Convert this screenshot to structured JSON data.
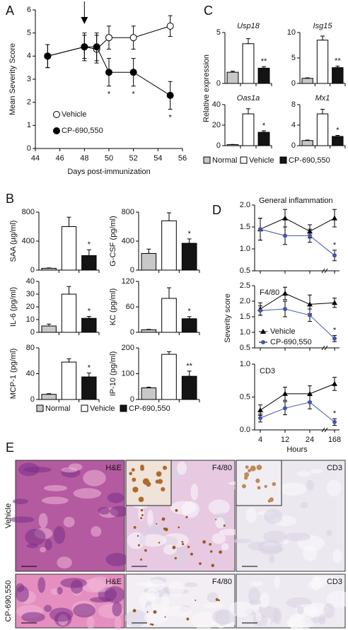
{
  "chart_data": [
    {
      "panel": "A",
      "type": "line",
      "xlabel": "Days post-immunization",
      "ylabel": "Mean Severity Score",
      "xlim": [
        44,
        56
      ],
      "xticks": [
        44,
        46,
        48,
        50,
        52,
        54,
        56
      ],
      "ylim": [
        0,
        6
      ],
      "yticks": [
        0,
        1,
        2,
        3,
        4,
        5,
        6
      ],
      "arrow_x": 48,
      "series": [
        {
          "name": "Vehicle",
          "color": "#000000",
          "fill": "#ffffff",
          "x": [
            45,
            48,
            49,
            50,
            52,
            55
          ],
          "values": [
            4,
            4.4,
            4.3,
            4.8,
            4.8,
            5.3
          ],
          "errors": [
            0.5,
            0.5,
            0.6,
            0.5,
            0.5,
            0.45
          ]
        },
        {
          "name": "CP-690,550",
          "color": "#000000",
          "fill": "#000000",
          "x": [
            45,
            48,
            49,
            50,
            52,
            55
          ],
          "values": [
            4,
            4.4,
            4.4,
            3.3,
            3.3,
            2.3
          ],
          "errors": [
            0.5,
            0.6,
            0.6,
            0.6,
            0.6,
            0.6
          ],
          "significance": [
            null,
            null,
            null,
            "*",
            "*",
            "*"
          ]
        }
      ]
    },
    {
      "panel": "B",
      "type": "bar",
      "categories": [
        "Normal",
        "Vehicle",
        "CP-690,550"
      ],
      "colors": [
        "#c8c8c8",
        "#ffffff",
        "#141414"
      ],
      "panels": [
        {
          "ylabel": "SAA (µg/ml)",
          "values": [
            25,
            600,
            200
          ],
          "errors": [
            5,
            130,
            80
          ],
          "ylim": [
            0,
            800
          ],
          "yticks": [
            0,
            400,
            800
          ],
          "significance": [
            null,
            null,
            "*"
          ]
        },
        {
          "ylabel": "G-CSF (pg/ml)",
          "values": [
            230,
            680,
            370
          ],
          "errors": [
            60,
            110,
            60
          ],
          "ylim": [
            0,
            800
          ],
          "yticks": [
            0,
            400,
            800
          ],
          "significance": [
            null,
            null,
            "*"
          ]
        },
        {
          "ylabel": "IL-6 (pg/ml)",
          "values": [
            5,
            30,
            11
          ],
          "errors": [
            1.5,
            6,
            1.5
          ],
          "ylim": [
            0,
            40
          ],
          "yticks": [
            0,
            10,
            20,
            30,
            40
          ],
          "significance": [
            null,
            null,
            "*"
          ]
        },
        {
          "ylabel": "KC (pg/ml)",
          "values": [
            6,
            80,
            32
          ],
          "errors": [
            1,
            25,
            5
          ],
          "ylim": [
            0,
            120
          ],
          "yticks": [
            0,
            60,
            120
          ],
          "significance": [
            null,
            null,
            "*"
          ]
        },
        {
          "ylabel": "MCP-1 (pg/ml)",
          "values": [
            8,
            58,
            35
          ],
          "errors": [
            1,
            5,
            6
          ],
          "ylim": [
            0,
            80
          ],
          "yticks": [
            0,
            40,
            80
          ],
          "significance": [
            null,
            null,
            "*"
          ]
        },
        {
          "ylabel": "IP-10 (pg/ml)",
          "values": [
            45,
            175,
            90
          ],
          "errors": [
            3,
            10,
            20
          ],
          "ylim": [
            0,
            200
          ],
          "yticks": [
            0,
            100,
            200
          ],
          "significance": [
            null,
            null,
            "**"
          ]
        }
      ]
    },
    {
      "panel": "C",
      "type": "bar",
      "ylabel": "Relative expression",
      "categories": [
        "Normal",
        "Vehicle",
        "CP-690,550"
      ],
      "colors": [
        "#c8c8c8",
        "#ffffff",
        "#141414"
      ],
      "panels": [
        {
          "title": "Usp18",
          "values": [
            1.1,
            3.9,
            1.5
          ],
          "errors": [
            0.1,
            0.5,
            0.15
          ],
          "ylim": [
            0,
            5
          ],
          "yticks": [
            0,
            5
          ],
          "significance": [
            null,
            null,
            "**"
          ]
        },
        {
          "title": "Isg15",
          "values": [
            1,
            8.5,
            3.1
          ],
          "errors": [
            0.1,
            0.8,
            0.3
          ],
          "ylim": [
            0,
            10
          ],
          "yticks": [
            0,
            5,
            10
          ],
          "significance": [
            null,
            null,
            "**"
          ]
        },
        {
          "title": "Oas1a",
          "values": [
            1,
            31,
            13
          ],
          "errors": [
            0.2,
            5,
            1.5
          ],
          "ylim": [
            0,
            40
          ],
          "yticks": [
            0,
            20,
            40
          ],
          "significance": [
            null,
            null,
            "*"
          ]
        },
        {
          "title": "Mx1",
          "values": [
            1,
            6.2,
            1.8
          ],
          "errors": [
            0.1,
            0.9,
            0.2
          ],
          "ylim": [
            0,
            8
          ],
          "yticks": [
            0,
            4,
            8
          ],
          "significance": [
            null,
            null,
            "*"
          ]
        }
      ]
    },
    {
      "panel": "D",
      "type": "line",
      "xlabel": "Hours",
      "ylabel": "Severity score",
      "categories": [
        "4",
        "12",
        "24",
        "168"
      ],
      "series": [
        {
          "name": "Vehicle",
          "color": "#000000",
          "marker": "triangle"
        },
        {
          "name": "CP-690,550",
          "color": "#4455aa",
          "marker": "circle"
        }
      ],
      "panels": [
        {
          "title": "General inflammation",
          "ylim": [
            0.5,
            2
          ],
          "yticks": [
            0.5,
            {
              "value": 1,
              "label": "1.0"
            },
            1.5,
            {
              "value": 2,
              "label": "2.0"
            }
          ],
          "values": [
            [
              1.45,
              1.7,
              1.4,
              1.7
            ],
            [
              1.45,
              1.3,
              1.3,
              0.85
            ]
          ],
          "errors": [
            [
              0.25,
              0.2,
              0.15,
              0.2
            ],
            [
              0.25,
              0.2,
              0.15,
              0.12
            ]
          ],
          "significance": [
            [
              null,
              null,
              null,
              null
            ],
            [
              null,
              null,
              null,
              "*"
            ]
          ]
        },
        {
          "title": "F4/80",
          "ylim": [
            0.5,
            2.5
          ],
          "yticks": [
            0.5,
            {
              "value": 1,
              "label": "1.0"
            },
            1.5,
            {
              "value": 2,
              "label": "2.0"
            },
            2.5
          ],
          "values": [
            [
              1.75,
              2.25,
              1.9,
              1.95
            ],
            [
              1.7,
              1.75,
              1.55,
              0.8
            ]
          ],
          "errors": [
            [
              0.2,
              0.2,
              0.3,
              0.15
            ],
            [
              0.15,
              0.25,
              0.2,
              0.1
            ]
          ],
          "significance": [
            [
              null,
              null,
              null,
              null
            ],
            [
              null,
              null,
              null,
              "*"
            ]
          ]
        },
        {
          "title": "CD3",
          "ylim": [
            0,
            1
          ],
          "yticks": [
            {
              "value": 0,
              "label": "0.0"
            },
            0.5,
            {
              "value": 1,
              "label": "1.0"
            }
          ],
          "values": [
            [
              0.3,
              0.55,
              0.55,
              0.7
            ],
            [
              0.18,
              0.33,
              0.42,
              0.12
            ]
          ],
          "errors": [
            [
              0.08,
              0.1,
              0.12,
              0.1
            ],
            [
              0.06,
              0.1,
              0.1,
              0.05
            ]
          ],
          "significance": [
            [
              null,
              null,
              null,
              null
            ],
            [
              null,
              null,
              null,
              "*"
            ]
          ]
        }
      ]
    }
  ],
  "histology": {
    "panel": "E",
    "columns": [
      "H&E",
      "F4/80",
      "CD3"
    ],
    "rows": [
      "Vehicle",
      "CP-690,550"
    ]
  }
}
